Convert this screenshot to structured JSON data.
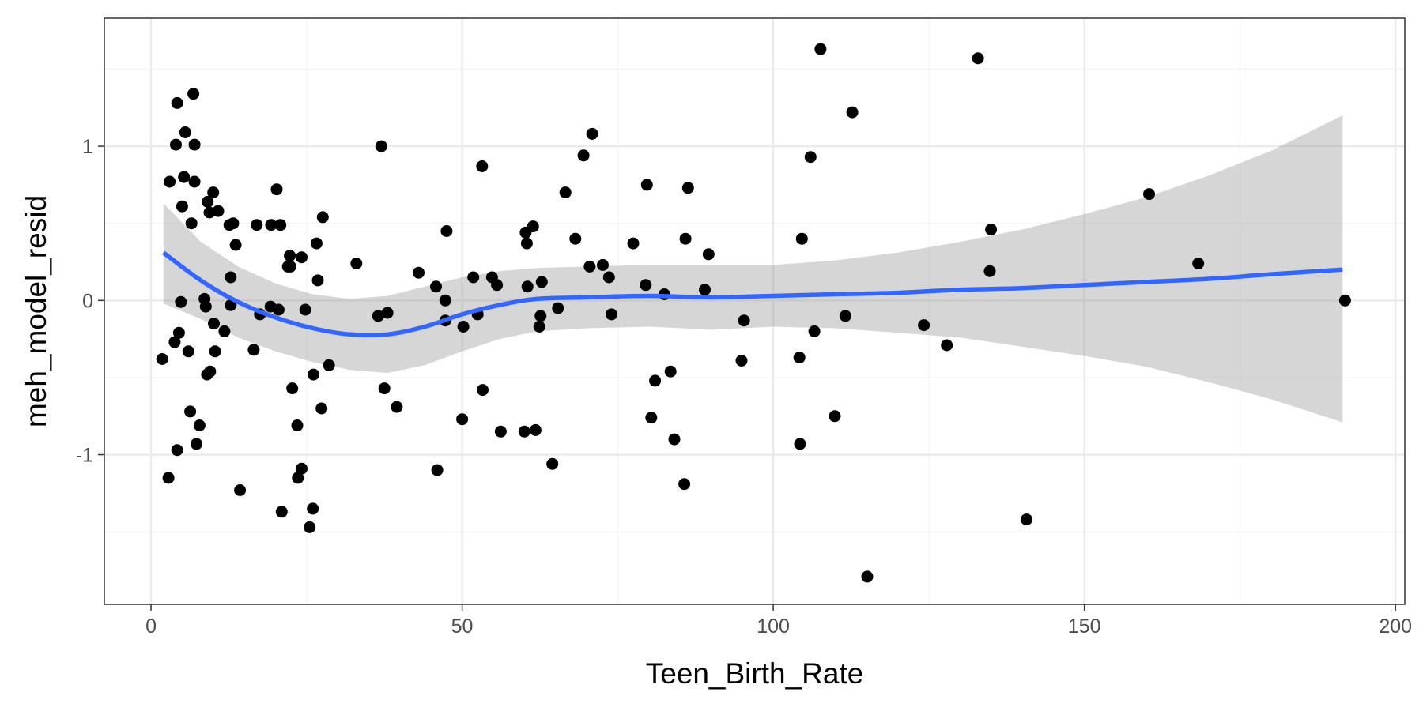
{
  "chart_data": {
    "type": "scatter",
    "title": "",
    "xlabel": "Teen_Birth_Rate",
    "ylabel": "meh_model_resid",
    "xlim": [
      -7.5,
      201.5
    ],
    "ylim": [
      -1.97,
      1.83
    ],
    "x_ticks": [
      0,
      50,
      100,
      150,
      200
    ],
    "x_tick_labels": [
      "0",
      "50",
      "100",
      "150",
      "200"
    ],
    "y_ticks": [
      -1,
      0,
      1
    ],
    "y_tick_labels": [
      "-1",
      "0",
      "1"
    ],
    "x_minor_ticks": [
      25,
      75,
      125,
      175
    ],
    "y_minor_ticks": [
      -1.5,
      -0.5,
      0.5,
      1.5
    ],
    "grid": true,
    "legend": "none",
    "colors": {
      "points": "#000000",
      "smooth_line": "#3366ff",
      "confidence_band": "#999999",
      "panel_border": "#333333",
      "grid_major": "#ebebeb",
      "grid_minor": "#f5f5f5"
    },
    "points": [
      [
        1.8,
        -0.38
      ],
      [
        2.8,
        -1.15
      ],
      [
        3.0,
        0.77
      ],
      [
        3.8,
        -0.27
      ],
      [
        4.0,
        1.01
      ],
      [
        4.2,
        1.28
      ],
      [
        4.2,
        -0.97
      ],
      [
        4.5,
        -0.21
      ],
      [
        4.8,
        -0.01
      ],
      [
        5.0,
        0.61
      ],
      [
        5.3,
        0.8
      ],
      [
        5.5,
        1.09
      ],
      [
        6.0,
        -0.33
      ],
      [
        6.3,
        -0.72
      ],
      [
        6.5,
        0.5
      ],
      [
        6.8,
        1.34
      ],
      [
        7.0,
        1.01
      ],
      [
        7.0,
        0.77
      ],
      [
        7.3,
        -0.93
      ],
      [
        7.8,
        -0.81
      ],
      [
        8.6,
        0.01
      ],
      [
        8.8,
        -0.04
      ],
      [
        9.0,
        -0.48
      ],
      [
        9.1,
        0.64
      ],
      [
        9.4,
        0.57
      ],
      [
        9.5,
        -0.46
      ],
      [
        10.0,
        0.7
      ],
      [
        10.1,
        -0.15
      ],
      [
        10.3,
        -0.33
      ],
      [
        10.8,
        0.58
      ],
      [
        11.8,
        -0.2
      ],
      [
        12.6,
        0.49
      ],
      [
        12.8,
        0.15
      ],
      [
        12.8,
        -0.03
      ],
      [
        13.2,
        0.5
      ],
      [
        13.6,
        0.36
      ],
      [
        14.3,
        -1.23
      ],
      [
        16.5,
        -0.32
      ],
      [
        17.0,
        0.49
      ],
      [
        17.5,
        -0.09
      ],
      [
        19.2,
        -0.04
      ],
      [
        19.3,
        0.49
      ],
      [
        20.2,
        0.72
      ],
      [
        20.5,
        -0.06
      ],
      [
        20.8,
        0.49
      ],
      [
        21.0,
        -1.37
      ],
      [
        22.0,
        0.22
      ],
      [
        22.3,
        0.29
      ],
      [
        22.4,
        0.22
      ],
      [
        22.7,
        -0.57
      ],
      [
        23.5,
        -0.81
      ],
      [
        23.6,
        -1.15
      ],
      [
        24.2,
        0.28
      ],
      [
        24.2,
        -1.09
      ],
      [
        24.8,
        -0.06
      ],
      [
        25.5,
        -1.47
      ],
      [
        26.0,
        -1.35
      ],
      [
        26.1,
        -0.48
      ],
      [
        26.6,
        0.37
      ],
      [
        26.8,
        0.13
      ],
      [
        27.4,
        -0.7
      ],
      [
        27.6,
        0.54
      ],
      [
        28.6,
        -0.42
      ],
      [
        33.0,
        0.24
      ],
      [
        36.5,
        -0.1
      ],
      [
        37.0,
        1.0
      ],
      [
        37.5,
        -0.57
      ],
      [
        38.0,
        -0.08
      ],
      [
        39.5,
        -0.69
      ],
      [
        43.0,
        0.18
      ],
      [
        45.8,
        0.09
      ],
      [
        46.0,
        -1.1
      ],
      [
        47.3,
        0.0
      ],
      [
        47.3,
        -0.13
      ],
      [
        47.5,
        0.45
      ],
      [
        50.0,
        -0.77
      ],
      [
        50.2,
        -0.17
      ],
      [
        51.8,
        0.15
      ],
      [
        52.5,
        -0.09
      ],
      [
        53.2,
        0.87
      ],
      [
        53.3,
        -0.58
      ],
      [
        54.8,
        0.15
      ],
      [
        55.6,
        0.1
      ],
      [
        56.2,
        -0.85
      ],
      [
        60.0,
        -0.85
      ],
      [
        60.2,
        0.44
      ],
      [
        60.4,
        0.37
      ],
      [
        60.5,
        0.09
      ],
      [
        61.4,
        0.48
      ],
      [
        61.8,
        -0.84
      ],
      [
        62.4,
        -0.17
      ],
      [
        62.6,
        -0.1
      ],
      [
        62.8,
        0.12
      ],
      [
        64.5,
        -1.06
      ],
      [
        65.4,
        -0.05
      ],
      [
        66.6,
        0.7
      ],
      [
        68.2,
        0.4
      ],
      [
        69.5,
        0.94
      ],
      [
        70.5,
        0.22
      ],
      [
        70.9,
        1.08
      ],
      [
        72.6,
        0.23
      ],
      [
        73.6,
        0.15
      ],
      [
        74.0,
        -0.09
      ],
      [
        77.5,
        0.37
      ],
      [
        79.5,
        0.1
      ],
      [
        79.7,
        0.75
      ],
      [
        80.4,
        -0.76
      ],
      [
        81.0,
        -0.52
      ],
      [
        82.5,
        0.04
      ],
      [
        83.5,
        -0.46
      ],
      [
        84.1,
        -0.9
      ],
      [
        85.7,
        -1.19
      ],
      [
        85.9,
        0.4
      ],
      [
        86.3,
        0.73
      ],
      [
        89.0,
        0.07
      ],
      [
        89.6,
        0.3
      ],
      [
        94.9,
        -0.39
      ],
      [
        95.3,
        -0.13
      ],
      [
        104.2,
        -0.37
      ],
      [
        104.3,
        -0.93
      ],
      [
        104.6,
        0.4
      ],
      [
        106.0,
        0.93
      ],
      [
        106.6,
        -0.2
      ],
      [
        107.6,
        1.63
      ],
      [
        109.9,
        -0.75
      ],
      [
        111.6,
        -0.1
      ],
      [
        112.7,
        1.22
      ],
      [
        115.1,
        -1.79
      ],
      [
        124.2,
        -0.16
      ],
      [
        127.9,
        -0.29
      ],
      [
        132.9,
        1.57
      ],
      [
        134.8,
        0.19
      ],
      [
        135.0,
        0.46
      ],
      [
        140.7,
        -1.42
      ],
      [
        160.4,
        0.69
      ],
      [
        168.3,
        0.24
      ],
      [
        191.9,
        0.0
      ]
    ],
    "smooth_line": [
      [
        2,
        0.31
      ],
      [
        8,
        0.13
      ],
      [
        14,
        -0.01
      ],
      [
        20,
        -0.11
      ],
      [
        26,
        -0.18
      ],
      [
        32,
        -0.22
      ],
      [
        38,
        -0.22
      ],
      [
        44,
        -0.17
      ],
      [
        50,
        -0.09
      ],
      [
        56,
        -0.03
      ],
      [
        62,
        0.01
      ],
      [
        70,
        0.02
      ],
      [
        80,
        0.03
      ],
      [
        90,
        0.02
      ],
      [
        100,
        0.03
      ],
      [
        110,
        0.04
      ],
      [
        120,
        0.05
      ],
      [
        130,
        0.07
      ],
      [
        140,
        0.08
      ],
      [
        150,
        0.1
      ],
      [
        160,
        0.12
      ],
      [
        170,
        0.14
      ],
      [
        180,
        0.17
      ],
      [
        191.5,
        0.2
      ]
    ],
    "confidence_band": {
      "upper": [
        [
          2,
          0.63
        ],
        [
          8,
          0.38
        ],
        [
          14,
          0.22
        ],
        [
          20,
          0.11
        ],
        [
          26,
          0.04
        ],
        [
          32,
          0.01
        ],
        [
          38,
          0.03
        ],
        [
          44,
          0.09
        ],
        [
          50,
          0.15
        ],
        [
          56,
          0.19
        ],
        [
          62,
          0.21
        ],
        [
          70,
          0.22
        ],
        [
          80,
          0.23
        ],
        [
          90,
          0.23
        ],
        [
          100,
          0.23
        ],
        [
          110,
          0.26
        ],
        [
          120,
          0.31
        ],
        [
          130,
          0.38
        ],
        [
          140,
          0.46
        ],
        [
          150,
          0.56
        ],
        [
          160,
          0.67
        ],
        [
          170,
          0.81
        ],
        [
          180,
          0.97
        ],
        [
          191.5,
          1.2
        ]
      ],
      "lower": [
        [
          2,
          -0.02
        ],
        [
          8,
          -0.12
        ],
        [
          14,
          -0.24
        ],
        [
          20,
          -0.33
        ],
        [
          26,
          -0.4
        ],
        [
          32,
          -0.45
        ],
        [
          38,
          -0.47
        ],
        [
          44,
          -0.42
        ],
        [
          50,
          -0.33
        ],
        [
          56,
          -0.25
        ],
        [
          62,
          -0.2
        ],
        [
          70,
          -0.18
        ],
        [
          80,
          -0.17
        ],
        [
          90,
          -0.19
        ],
        [
          100,
          -0.17
        ],
        [
          110,
          -0.18
        ],
        [
          120,
          -0.21
        ],
        [
          130,
          -0.24
        ],
        [
          140,
          -0.3
        ],
        [
          150,
          -0.36
        ],
        [
          160,
          -0.43
        ],
        [
          170,
          -0.53
        ],
        [
          180,
          -0.64
        ],
        [
          191.5,
          -0.79
        ]
      ]
    }
  }
}
